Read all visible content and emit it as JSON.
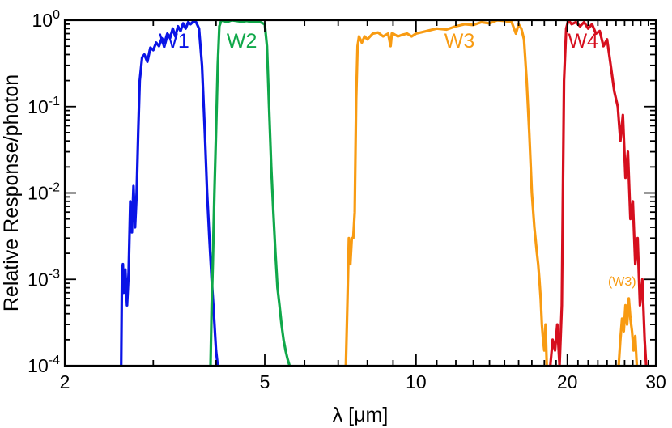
{
  "chart_data": {
    "type": "line",
    "title": "",
    "xlabel": "λ [μm]",
    "ylabel": "Relative Response/photon",
    "xscale": "log",
    "yscale": "log",
    "xlim": [
      2,
      30
    ],
    "ylim": [
      0.0001,
      1
    ],
    "xticks": [
      {
        "value": 2,
        "label": "2"
      },
      {
        "value": 5,
        "label": "5"
      },
      {
        "value": 10,
        "label": "10"
      },
      {
        "value": 20,
        "label": "20"
      },
      {
        "value": 30,
        "label": "30"
      }
    ],
    "yticks": [
      {
        "value": 1,
        "base": "10",
        "exp": "0"
      },
      {
        "value": 0.1,
        "base": "10",
        "exp": "-1"
      },
      {
        "value": 0.01,
        "base": "10",
        "exp": "-2"
      },
      {
        "value": 0.001,
        "base": "10",
        "exp": "-3"
      },
      {
        "value": 0.0001,
        "base": "10",
        "exp": "-4"
      }
    ],
    "grid": false,
    "legend": "none",
    "series": [
      {
        "name": "W1",
        "color": "#0a14e6",
        "label_at": [
          3.3,
          0.48
        ],
        "x": [
          2.59,
          2.6,
          2.61,
          2.62,
          2.64,
          2.66,
          2.68,
          2.7,
          2.72,
          2.74,
          2.76,
          2.78,
          2.8,
          2.82,
          2.85,
          2.88,
          2.92,
          2.96,
          3.0,
          3.04,
          3.08,
          3.12,
          3.16,
          3.2,
          3.24,
          3.28,
          3.32,
          3.36,
          3.4,
          3.44,
          3.48,
          3.52,
          3.56,
          3.6,
          3.65,
          3.7,
          3.75,
          3.8,
          3.84,
          3.88,
          3.92,
          3.96,
          4.0,
          4.03
        ],
        "y": [
          0.0001,
          0.0012,
          0.0015,
          0.0007,
          0.0013,
          0.0005,
          0.0012,
          0.008,
          0.0035,
          0.012,
          0.004,
          0.01,
          0.05,
          0.2,
          0.37,
          0.4,
          0.33,
          0.48,
          0.45,
          0.55,
          0.5,
          0.62,
          0.55,
          0.7,
          0.62,
          0.8,
          0.65,
          0.85,
          0.75,
          0.92,
          0.8,
          0.95,
          0.9,
          0.96,
          0.95,
          0.8,
          0.3,
          0.05,
          0.01,
          0.003,
          0.001,
          0.0004,
          0.00015,
          0.0001
        ]
      },
      {
        "name": "W2",
        "color": "#10a84a",
        "label_at": [
          4.5,
          0.48
        ],
        "x": [
          3.9,
          3.92,
          3.94,
          3.97,
          4.0,
          4.03,
          4.06,
          4.1,
          4.15,
          4.2,
          4.3,
          4.4,
          4.5,
          4.6,
          4.7,
          4.8,
          4.9,
          5.0,
          5.05,
          5.1,
          5.15,
          5.2,
          5.25,
          5.3,
          5.35,
          5.4,
          5.45,
          5.5,
          5.55,
          5.6
        ],
        "y": [
          0.0001,
          0.0005,
          0.0015,
          0.01,
          0.05,
          0.3,
          0.85,
          1.0,
          0.98,
          0.95,
          1.0,
          0.98,
          0.96,
          0.98,
          0.96,
          0.97,
          0.95,
          0.9,
          0.5,
          0.1,
          0.02,
          0.006,
          0.002,
          0.0008,
          0.0005,
          0.0003,
          0.0002,
          0.00015,
          0.00012,
          0.0001
        ]
      },
      {
        "name": "W3",
        "color": "#f89b12",
        "label_at": [
          12.2,
          0.48
        ],
        "x": [
          7.25,
          7.3,
          7.35,
          7.4,
          7.45,
          7.5,
          7.55,
          7.6,
          7.65,
          7.7,
          7.8,
          7.9,
          8.0,
          8.2,
          8.4,
          8.6,
          8.8,
          8.9,
          8.95,
          9.0,
          9.2,
          9.4,
          9.6,
          9.8,
          10.0,
          10.5,
          11.0,
          11.5,
          12.0,
          12.5,
          13.0,
          13.5,
          14.0,
          14.5,
          15.0,
          15.5,
          15.8,
          16.0,
          16.2,
          16.4,
          16.6,
          16.8,
          17.0,
          17.2,
          17.4,
          17.5,
          17.6,
          17.7,
          17.8,
          17.9,
          18.0,
          18.1,
          18.2
        ],
        "y": [
          0.0001,
          0.0005,
          0.003,
          0.0015,
          0.003,
          0.003,
          0.006,
          0.12,
          0.5,
          0.65,
          0.55,
          0.65,
          0.6,
          0.7,
          0.72,
          0.65,
          0.7,
          0.5,
          0.7,
          0.7,
          0.65,
          0.68,
          0.7,
          0.65,
          0.7,
          0.75,
          0.8,
          0.78,
          0.85,
          0.9,
          0.88,
          0.95,
          0.92,
          1.0,
          0.98,
          0.95,
          0.7,
          0.9,
          0.8,
          0.6,
          0.2,
          0.05,
          0.01,
          0.004,
          0.002,
          0.0015,
          0.001,
          0.0006,
          0.0003,
          0.0002,
          0.00015,
          0.0003,
          0.0001
        ]
      },
      {
        "name": "(W3)",
        "color": "#f89b12",
        "label_at": [
          25.7,
          0.00085
        ],
        "x": [
          25.3,
          25.5,
          25.7,
          25.9,
          26.1,
          26.3,
          26.5,
          26.7,
          26.9,
          27.1,
          27.3,
          27.5
        ],
        "y": [
          0.0001,
          0.0002,
          0.00035,
          0.00025,
          0.0005,
          0.0003,
          0.0006,
          0.00035,
          0.00025,
          0.00015,
          0.00022,
          0.0001
        ]
      },
      {
        "name": "W4",
        "color": "#d60f1e",
        "label_at": [
          21.5,
          0.48
        ],
        "x": [
          18.5,
          18.7,
          18.9,
          19.1,
          19.3,
          19.5,
          19.7,
          19.9,
          20.1,
          20.4,
          20.8,
          21.2,
          21.6,
          22.0,
          22.4,
          22.8,
          23.2,
          23.6,
          24.0,
          24.4,
          24.8,
          25.2,
          25.5,
          25.8,
          26.1,
          26.4,
          26.7,
          27.0,
          27.3,
          27.6,
          27.9,
          28.2,
          28.5,
          28.7
        ],
        "y": [
          0.0001,
          0.0002,
          0.00015,
          0.0003,
          0.0001,
          0.0005,
          0.2,
          0.8,
          1.0,
          0.9,
          0.95,
          0.85,
          0.95,
          0.8,
          0.9,
          0.7,
          0.75,
          0.5,
          0.6,
          0.3,
          0.15,
          0.1,
          0.04,
          0.08,
          0.015,
          0.03,
          0.005,
          0.008,
          0.0015,
          0.003,
          0.0005,
          0.001,
          0.0002,
          0.0001
        ]
      }
    ]
  }
}
